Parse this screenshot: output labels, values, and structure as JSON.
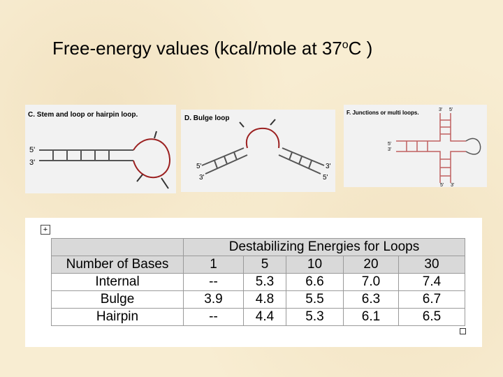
{
  "title": {
    "main": "Free-energy values (kcal/mole at 37",
    "superscript": "o",
    "end": "C )"
  },
  "panels": [
    {
      "caption": "C. Stem and loop or hairpin loop.",
      "labels": [
        "5'",
        "3'"
      ]
    },
    {
      "caption": "D. Bulge loop",
      "labels": [
        "5'",
        "3'",
        "3'",
        "5'"
      ]
    },
    {
      "caption": "F. Junctions or multi loops.",
      "labels": [
        "3'",
        "5'",
        "5'",
        "3'",
        "5'",
        "3'"
      ]
    }
  ],
  "table": {
    "title": "Destabilizing Energies for Loops",
    "header": [
      "Number of Bases",
      "1",
      "5",
      "10",
      "20",
      "30"
    ],
    "rows": [
      [
        "Internal",
        "--",
        "5.3",
        "6.6",
        "7.0",
        "7.4"
      ],
      [
        "Bulge",
        "3.9",
        "4.8",
        "5.5",
        "6.3",
        "6.7"
      ],
      [
        "Hairpin",
        "--",
        "4.4",
        "5.3",
        "6.1",
        "6.5"
      ]
    ]
  }
}
